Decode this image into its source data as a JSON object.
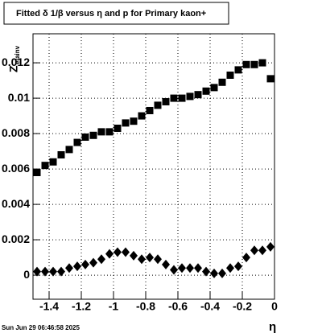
{
  "chart_data": {
    "type": "scatter",
    "title": "Fitted δ 1/β versus η and p for Primary kaon+",
    "ylabel": {
      "main": "Z",
      "sub": "etainv"
    },
    "xlabel": "η",
    "date": "Sun Jun 29 06:46:58 2025",
    "x": [
      -1.475,
      -1.425,
      -1.375,
      -1.325,
      -1.275,
      -1.225,
      -1.175,
      -1.125,
      -1.075,
      -1.025,
      -0.975,
      -0.925,
      -0.875,
      -0.825,
      -0.775,
      -0.725,
      -0.675,
      -0.625,
      -0.575,
      -0.525,
      -0.475,
      -0.425,
      -0.375,
      -0.325,
      -0.275,
      -0.225,
      -0.175,
      -0.125,
      -0.075,
      -0.025
    ],
    "series": [
      {
        "marker": "square",
        "color": "#000000",
        "values": [
          0.0058,
          0.0062,
          0.0064,
          0.0068,
          0.0071,
          0.0075,
          0.0078,
          0.0079,
          0.0081,
          0.0081,
          0.0083,
          0.0086,
          0.0087,
          0.009,
          0.0093,
          0.0096,
          0.0098,
          0.01,
          0.01,
          0.0101,
          0.0102,
          0.0104,
          0.0106,
          0.0109,
          0.0113,
          0.0116,
          0.0119,
          0.0119,
          0.012,
          0.0111
        ]
      },
      {
        "marker": "diamond",
        "color": "#000000",
        "values": [
          0.0002,
          0.0002,
          0.0002,
          0.0002,
          0.0004,
          0.0005,
          0.0006,
          0.0007,
          0.0009,
          0.0012,
          0.0013,
          0.0013,
          0.0011,
          0.0009,
          0.001,
          0.0009,
          0.0006,
          0.0003,
          0.0004,
          0.0004,
          0.0004,
          0.0002,
          0.0001,
          0.0001,
          0.0004,
          0.0005,
          0.001,
          0.0014,
          0.0014,
          0.0016
        ]
      }
    ],
    "xlim": [
      -1.5,
      0
    ],
    "xticks": [
      -1.4,
      -1.2,
      -1,
      -0.8,
      -0.6,
      -0.4,
      -0.2,
      0
    ],
    "ylim": [
      -0.00136,
      0.01364
    ],
    "yticks": [
      0,
      0.002,
      0.004,
      0.006,
      0.008,
      0.01,
      0.012
    ],
    "grid": true
  }
}
